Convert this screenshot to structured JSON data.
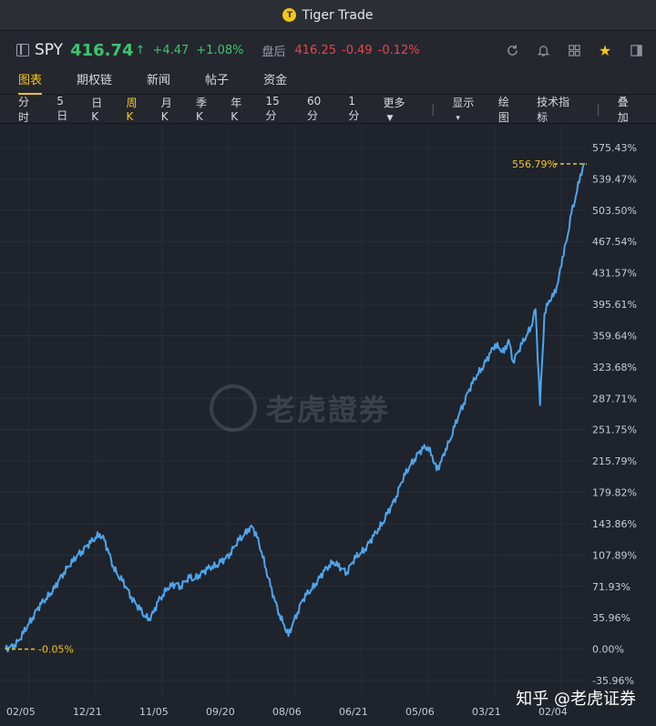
{
  "window": {
    "title": "Tiger Trade"
  },
  "quote": {
    "symbol": "SPY",
    "price": "416.74",
    "change": "+4.47",
    "change_pct": "+1.08%",
    "after_hours_label": "盘后",
    "after_hours_price": "416.25",
    "after_hours_change": "-0.49",
    "after_hours_pct": "-0.12%",
    "colors": {
      "up": "#3ec46d",
      "down": "#e5484d",
      "accent": "#f5c518",
      "line": "#4da6ee"
    }
  },
  "tabs": [
    {
      "label": "图表",
      "active": true
    },
    {
      "label": "期权链",
      "active": false
    },
    {
      "label": "新闻",
      "active": false
    },
    {
      "label": "帖子",
      "active": false
    },
    {
      "label": "资金",
      "active": false
    }
  ],
  "periods": {
    "items": [
      "分时",
      "5日",
      "日K",
      "周K",
      "月K",
      "季K",
      "年K",
      "15分",
      "60分",
      "1分"
    ],
    "active": "周K",
    "more": "更多",
    "display": "显示",
    "draw": "绘图",
    "indicators": "技术指标",
    "overlay": "叠加"
  },
  "chart_data": {
    "type": "line",
    "y_axis_labels": [
      "575.43%",
      "539.47%",
      "503.50%",
      "467.54%",
      "431.57%",
      "395.61%",
      "359.64%",
      "323.68%",
      "287.71%",
      "251.75%",
      "215.79%",
      "179.82%",
      "143.86%",
      "107.89%",
      "71.93%",
      "35.96%",
      "0.00%",
      "-35.96%"
    ],
    "ylim": [
      -35.96,
      575.43
    ],
    "x_tick_labels": [
      "02/05",
      "12/21",
      "11/05",
      "09/20",
      "08/06",
      "06/21",
      "05/06",
      "03/21",
      "02/04"
    ],
    "start_label": "-0.05%",
    "end_label": "556.79%",
    "series": [
      {
        "values": [
          0,
          2,
          5,
          10,
          18,
          28,
          36,
          45,
          52,
          58,
          64,
          70,
          80,
          88,
          95,
          100,
          108,
          112,
          118,
          122,
          128,
          132,
          125,
          110,
          95,
          85,
          78,
          70,
          60,
          52,
          45,
          38,
          35,
          42,
          55,
          62,
          70,
          72,
          75,
          72,
          78,
          82,
          80,
          85,
          88,
          92,
          95,
          96,
          100,
          104,
          110,
          118,
          125,
          130,
          138,
          140,
          128,
          112,
          92,
          72,
          55,
          40,
          28,
          15,
          30,
          42,
          55,
          62,
          68,
          75,
          82,
          90,
          96,
          100,
          95,
          92,
          88,
          98,
          105,
          110,
          115,
          122,
          130,
          138,
          145,
          155,
          165,
          175,
          190,
          200,
          210,
          218,
          225,
          230,
          232,
          222,
          205,
          215,
          230,
          240,
          255,
          270,
          282,
          295,
          305,
          315,
          322,
          330,
          340,
          350,
          345,
          340,
          355,
          330,
          340,
          350,
          360,
          370,
          390,
          280,
          385,
          400,
          405,
          420,
          450,
          470,
          500,
          520,
          545,
          556.79
        ]
      }
    ]
  },
  "watermark": {
    "text": "老虎證券"
  },
  "credit": {
    "text": "知乎 @老虎证券"
  }
}
